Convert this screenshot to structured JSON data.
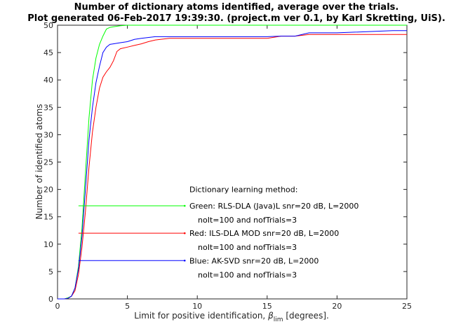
{
  "chart_data": {
    "type": "line",
    "title_line1": "Number of dictionary atoms identified, average over the trials.",
    "title_line2": "Plot generated 06-Feb-2017 19:39:30. (project.m ver 0.1, by Karl Skretting, UiS).",
    "xlabel_main": "Limit for positive identification, ",
    "xlabel_symbol": "β",
    "xlabel_sub": "lim",
    "xlabel_tail": " [degrees].",
    "ylabel": "Number of identified atoms",
    "xlim": [
      0,
      25
    ],
    "ylim": [
      0,
      50
    ],
    "xticks": [
      0,
      5,
      10,
      15,
      20,
      25
    ],
    "yticks": [
      0,
      5,
      10,
      15,
      20,
      25,
      30,
      35,
      40,
      45,
      50
    ],
    "grid": false,
    "legend_heading": "Dictionary learning method:",
    "series": [
      {
        "name": "Green: RLS-DLA (Java)L snr=20 dB, L=2000",
        "name_line2": "noIt=100 and nofTrials=3",
        "color": "#00ff00",
        "legend_y": 17,
        "legend_x": [
          1.5,
          9.1
        ],
        "x": [
          0,
          0.25,
          0.5,
          0.75,
          1.0,
          1.25,
          1.5,
          1.75,
          2.0,
          2.25,
          2.5,
          2.75,
          3.0,
          3.25,
          3.5,
          3.75,
          4.0,
          4.5,
          5,
          6,
          10,
          15,
          20,
          25
        ],
        "y": [
          0,
          0,
          0,
          0.2,
          0.5,
          2.0,
          6.0,
          13.0,
          23.0,
          33.0,
          40.0,
          44.0,
          46.5,
          48.0,
          49.3,
          49.6,
          49.7,
          49.9,
          50,
          50,
          50,
          50,
          50,
          50
        ]
      },
      {
        "name": "Red: ILS-DLA MOD snr=20 dB, L=2000",
        "name_line2": "noIt=100 and nofTrials=3",
        "color": "#ff0000",
        "legend_y": 12,
        "legend_x": [
          1.5,
          9.1
        ],
        "x": [
          0,
          0.5,
          0.75,
          1.0,
          1.25,
          1.5,
          1.75,
          2.0,
          2.25,
          2.5,
          2.75,
          3.0,
          3.25,
          3.5,
          3.75,
          4.0,
          4.25,
          4.5,
          5.0,
          5.5,
          6.0,
          6.5,
          7.0,
          8.0,
          9.0,
          15,
          16,
          17,
          18,
          20,
          25
        ],
        "y": [
          0,
          0,
          0.1,
          0.5,
          1.5,
          4.5,
          9.5,
          16.0,
          24.0,
          30.5,
          35.0,
          38.5,
          40.5,
          41.5,
          42.3,
          43.5,
          45.2,
          45.7,
          46.0,
          46.3,
          46.6,
          47.0,
          47.3,
          47.6,
          47.6,
          47.6,
          48.0,
          48.0,
          48.3,
          48.3,
          48.3
        ]
      },
      {
        "name": "Blue: AK-SVD snr=20 dB, L=2000",
        "name_line2": "noIt=100 and nofTrials=3",
        "color": "#0000ff",
        "legend_y": 7,
        "legend_x": [
          1.5,
          9.1
        ],
        "x": [
          0,
          0.5,
          0.75,
          1.0,
          1.25,
          1.5,
          1.75,
          2.0,
          2.25,
          2.5,
          2.75,
          3.0,
          3.25,
          3.5,
          3.75,
          4.0,
          4.5,
          5.0,
          5.5,
          6.0,
          7.0,
          10,
          15,
          16,
          17,
          18,
          20,
          24,
          25
        ],
        "y": [
          0,
          0,
          0.1,
          0.5,
          2.0,
          5.5,
          11.5,
          20.0,
          29.0,
          35.0,
          39.5,
          42.5,
          45.0,
          46.0,
          46.5,
          46.6,
          46.8,
          47.0,
          47.4,
          47.6,
          47.9,
          47.9,
          47.9,
          48.0,
          48.0,
          48.6,
          48.6,
          49.0,
          49.0
        ]
      }
    ]
  }
}
